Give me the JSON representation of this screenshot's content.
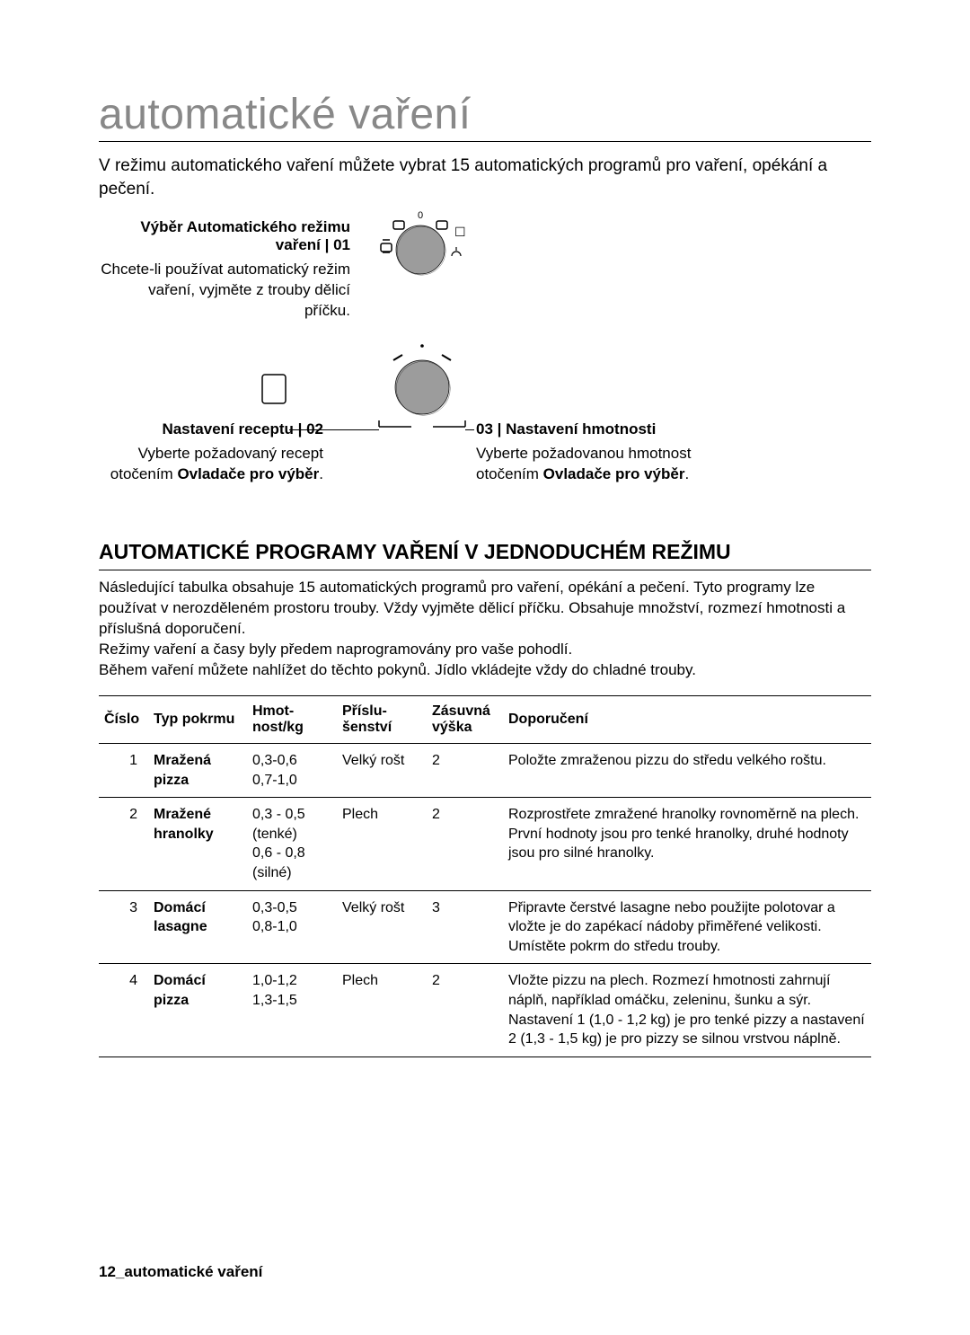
{
  "title": "automatické vaření",
  "intro": "V režimu automatického vaření můžete vybrat 15 automatických programů pro vaření, opékání a pečení.",
  "step1": {
    "label": "Výběr Automatického režimu vaření | 01",
    "body": "Chcete-li používat automatický režim vaření, vyjměte z trouby dělicí příčku."
  },
  "step2": {
    "label": "Nastavení receptu | 02",
    "body_pre": "Vyberte požadovaný recept otočením ",
    "body_bold": "Ovladače pro výběr",
    "body_post": "."
  },
  "step3": {
    "label": "03 | Nastavení hmotnosti",
    "body_pre": "Vyberte požadovanou hmotnost otočením ",
    "body_bold": "Ovladače pro výběr",
    "body_post": "."
  },
  "dial": {
    "knob_fill": "#9c9c9c",
    "knob_stroke": "#000",
    "icon_stroke": "#000"
  },
  "h2": "AUTOMATICKÉ PROGRAMY VAŘENÍ V JEDNODUCHÉM REŽIMU",
  "paragraphs": [
    "Následující tabulka obsahuje 15 automatických programů pro vaření, opékání a pečení. Tyto programy lze používat v nerozděleném prostoru trouby. Vždy vyjměte dělicí příčku. Obsahuje množství, rozmezí hmotnosti a příslušná doporučení.",
    "Režimy vaření a časy byly předem naprogramovány pro vaše pohodlí.",
    "Během vaření můžete nahlížet do těchto pokynů. Jídlo vkládejte vždy do chladné trouby."
  ],
  "table": {
    "headers": [
      "Číslo",
      "Typ pokrmu",
      "Hmot-\nnost/kg",
      "Příslu-\nšenství",
      "Zásuvná výška",
      "Doporučení"
    ],
    "col_widths": [
      "55px",
      "110px",
      "100px",
      "100px",
      "85px",
      "auto"
    ],
    "rows": [
      {
        "num": "1",
        "type": "Mražená pizza",
        "weight": "0,3-0,6\n0,7-1,0",
        "acc": "Velký rošt",
        "shelf": "2",
        "rec": "Položte zmraženou pizzu do středu velkého roštu."
      },
      {
        "num": "2",
        "type": "Mražené hranolky",
        "weight": "0,3 - 0,5 (tenké)\n0,6 - 0,8 (silné)",
        "acc": "Plech",
        "shelf": "2",
        "rec": "Rozprostřete zmražené hranolky rovnoměrně na plech. První hodnoty jsou pro tenké hranolky, druhé hodnoty jsou pro silné hranolky."
      },
      {
        "num": "3",
        "type": "Domácí lasagne",
        "weight": "0,3-0,5\n0,8-1,0",
        "acc": "Velký rošt",
        "shelf": "3",
        "rec": "Připravte čerstvé lasagne nebo použijte polotovar a vložte je do zapékací nádoby přiměřené velikosti. Umístěte pokrm do středu trouby."
      },
      {
        "num": "4",
        "type": "Domácí pizza",
        "weight": "1,0-1,2\n1,3-1,5",
        "acc": "Plech",
        "shelf": "2",
        "rec": "Vložte pizzu na plech. Rozmezí hmotnosti zahrnují náplň, například omáčku, zeleninu, šunku a sýr. Nastavení 1 (1,0 - 1,2 kg) je pro tenké pizzy a nastavení 2 (1,3 - 1,5 kg) je pro pizzy se silnou vrstvou náplně."
      }
    ]
  },
  "footer": "12_automatické vaření"
}
